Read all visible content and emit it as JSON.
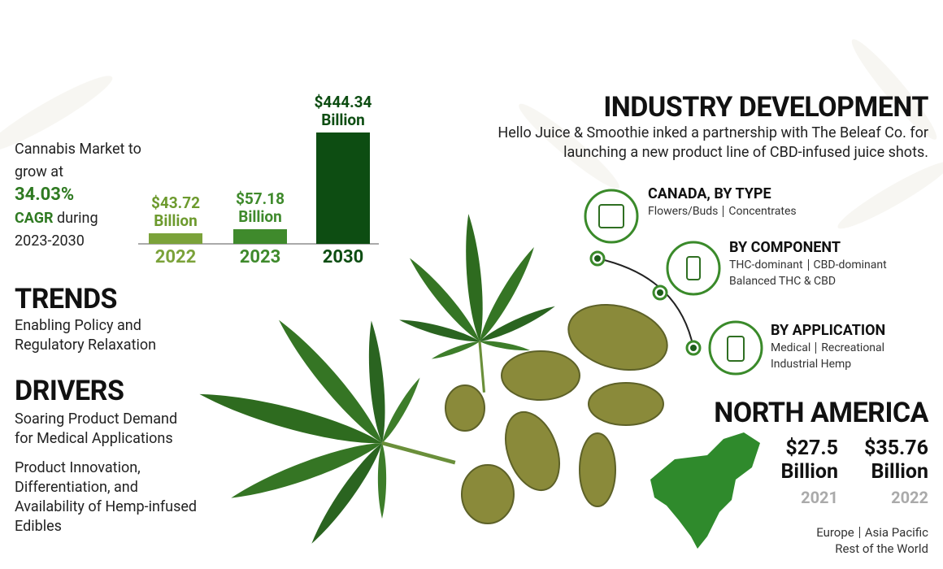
{
  "market": {
    "intro": "Cannabis Market to grow at",
    "cagr_value": "34.03%",
    "cagr_label": "CAGR",
    "cagr_suffix": "during",
    "period": "2023-2030"
  },
  "chart_data": {
    "type": "bar",
    "categories": [
      "2022",
      "2023",
      "2030"
    ],
    "values": [
      43.72,
      57.18,
      444.34
    ],
    "value_labels": [
      "$43.72 Billion",
      "$57.18 Billion",
      "$444.34 Billion"
    ],
    "colors": [
      "#7ba23a",
      "#3f8a2c",
      "#0d4d12"
    ],
    "label_colors": [
      "#6d9a2e",
      "#3f8a2c",
      "#0d4d12"
    ]
  },
  "trends": {
    "title": "TRENDS",
    "text": "Enabling Policy and Regulatory Relaxation"
  },
  "drivers": {
    "title": "DRIVERS",
    "items": [
      "Soaring Product Demand for Medical Applications",
      "Product Innovation, Differentiation, and Availability of Hemp-infused Edibles"
    ]
  },
  "industry": {
    "title": "INDUSTRY DEVELOPMENT",
    "text": "Hello Juice & Smoothie inked a partnership with The Beleaf Co. for launching a new product line of CBD-infused juice shots."
  },
  "segments": [
    {
      "title": "CANADA, BY TYPE",
      "items": [
        "Flowers/Buds",
        "Concentrates"
      ]
    },
    {
      "title": "BY COMPONENT",
      "items": [
        "THC-dominant",
        "CBD-dominant",
        "Balanced THC & CBD"
      ]
    },
    {
      "title": "BY APPLICATION",
      "items": [
        "Medical",
        "Recreational",
        "Industrial Hemp"
      ]
    }
  ],
  "region": {
    "title": "NORTH AMERICA",
    "figures": [
      {
        "value": "$27.5 Billion",
        "year": "2021"
      },
      {
        "value": "$35.76 Billion",
        "year": "2022"
      }
    ],
    "others": [
      "Europe",
      "Asia Pacific",
      "Rest of the World"
    ]
  }
}
